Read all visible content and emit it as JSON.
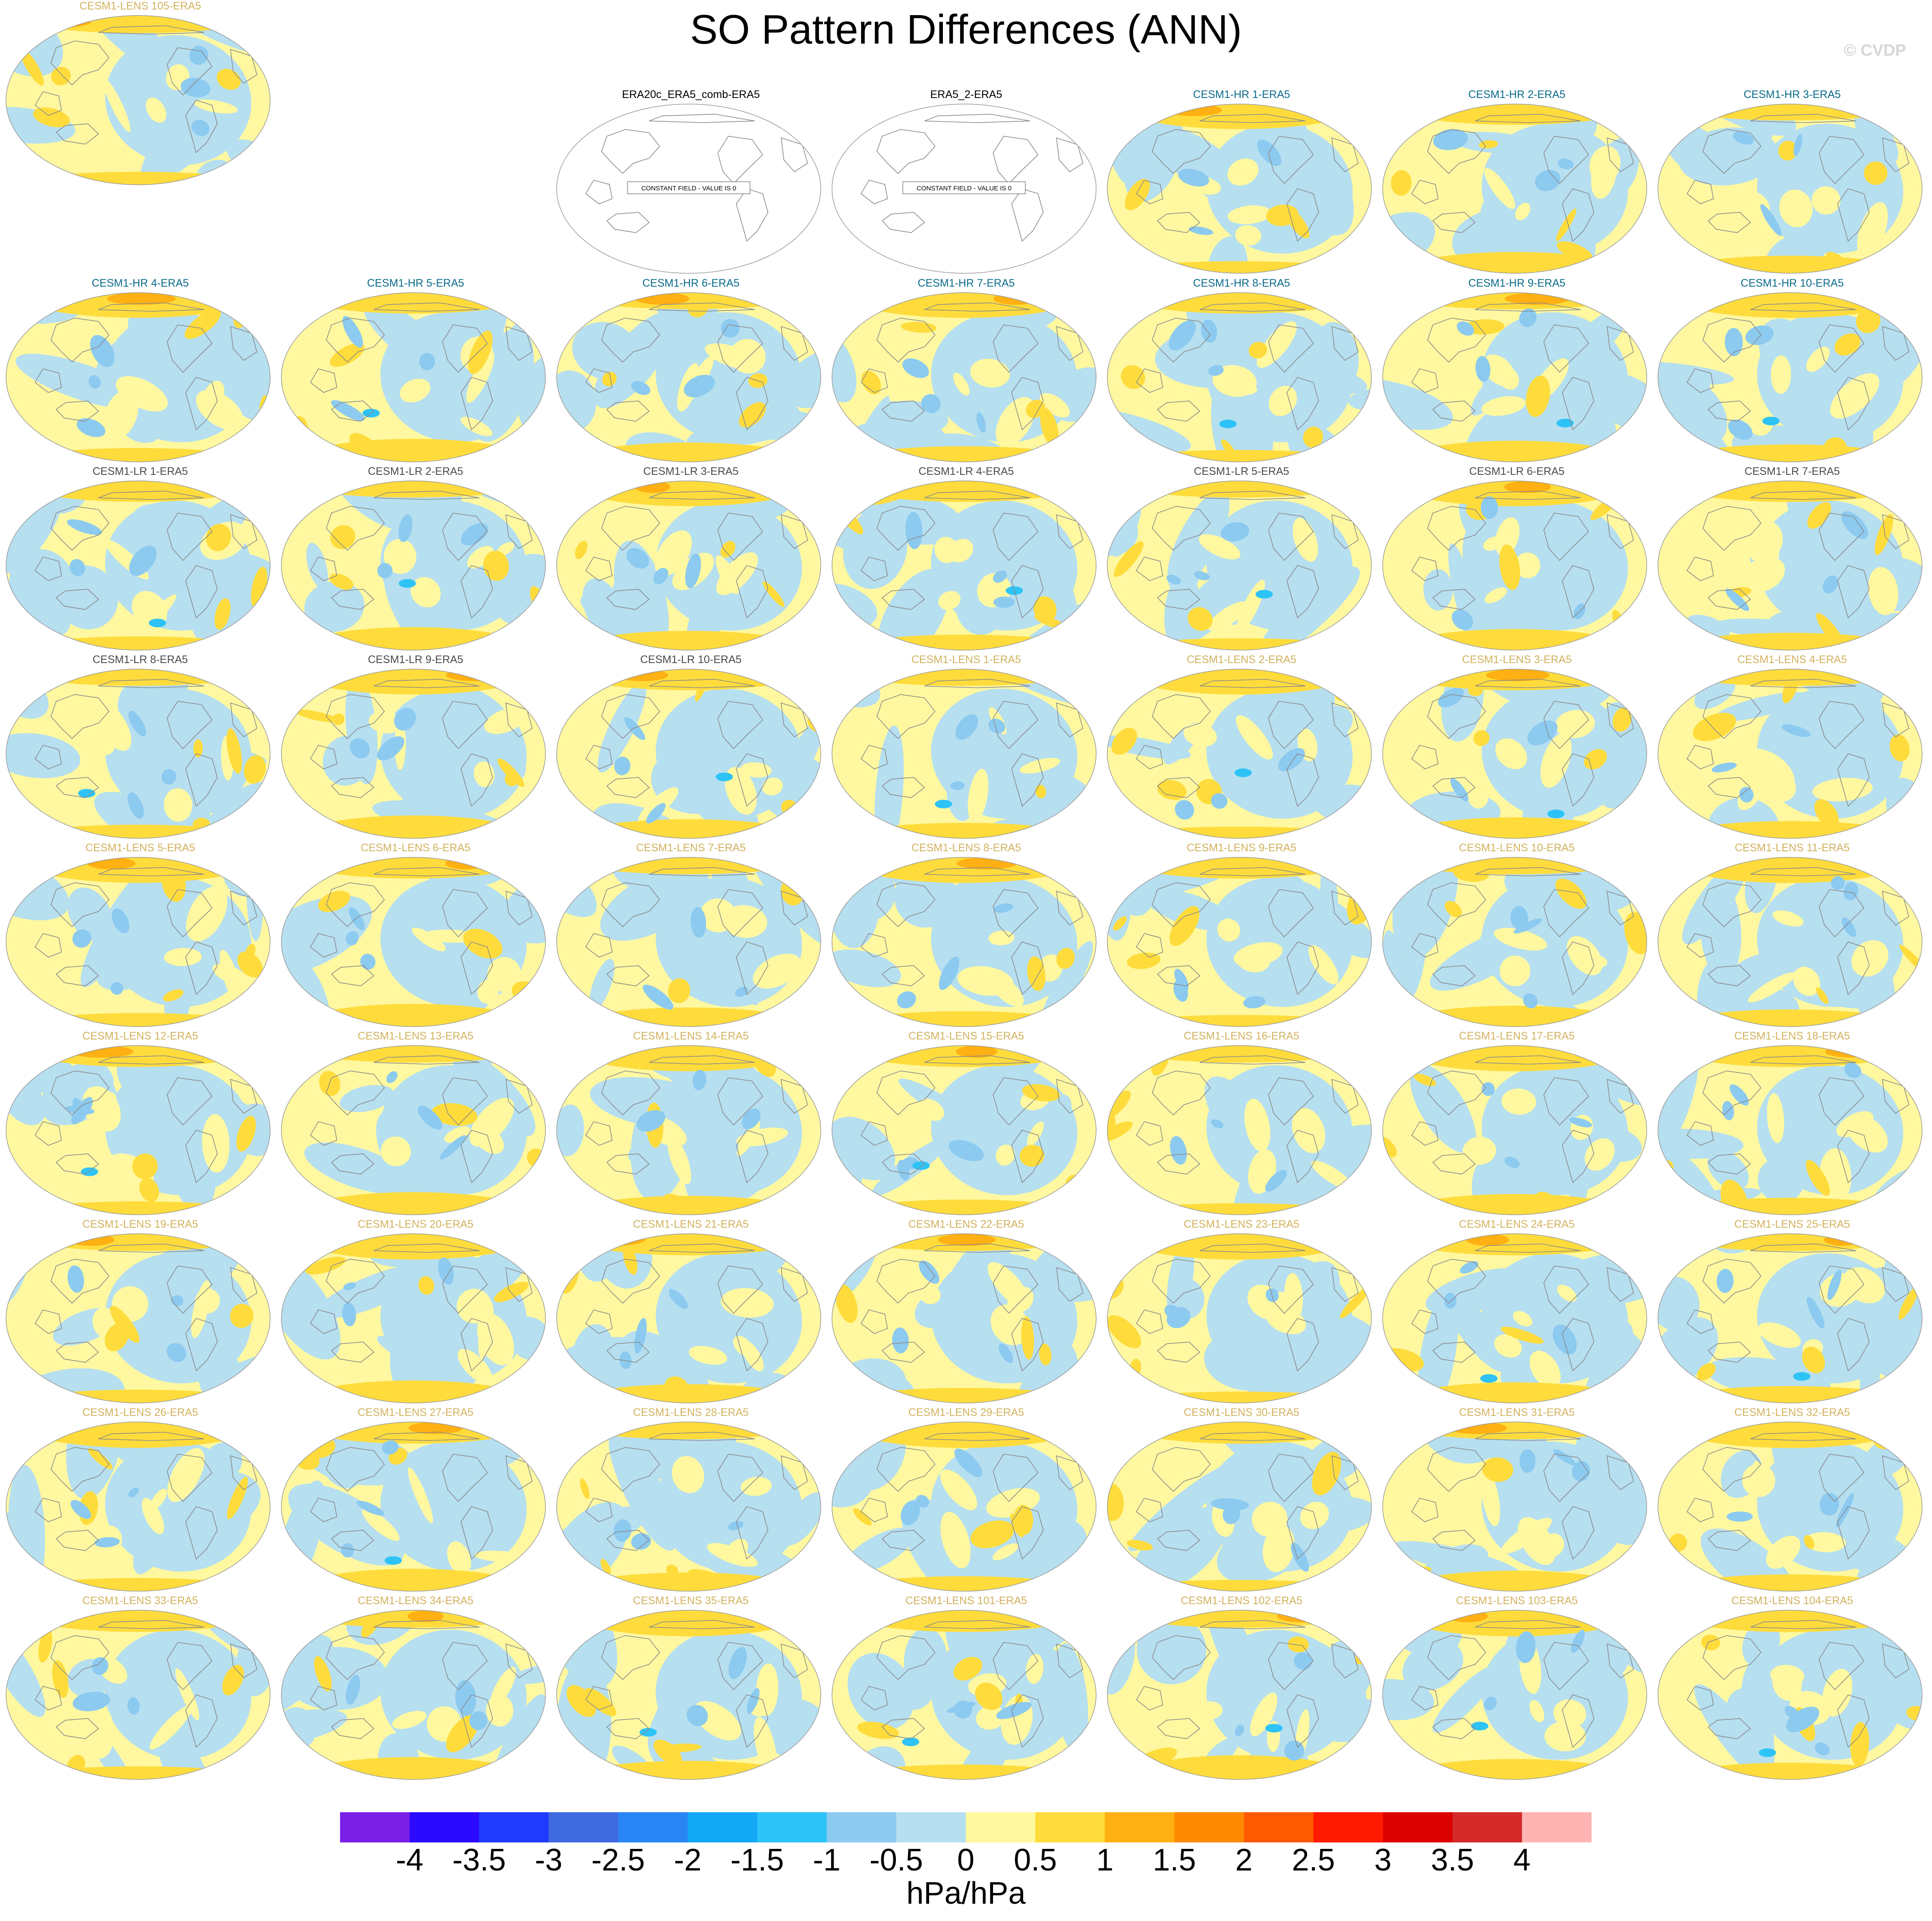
{
  "title": "SO Pattern Differences (ANN)",
  "copyright": "© CVDP",
  "panels": [
    {
      "label": "ERA20c_ERA5_comb-ERA5",
      "group": "obs",
      "constant_label": "CONSTANT FIELD - VALUE IS 0"
    },
    {
      "label": "ERA5_2-ERA5",
      "group": "obs",
      "constant_label": "CONSTANT FIELD - VALUE IS 0"
    },
    {
      "label": "CESM1-HR 1-ERA5",
      "group": "hr"
    },
    {
      "label": "CESM1-HR 2-ERA5",
      "group": "hr"
    },
    {
      "label": "CESM1-HR 3-ERA5",
      "group": "hr"
    },
    {
      "label": "CESM1-HR 4-ERA5",
      "group": "hr"
    },
    {
      "label": "CESM1-HR 5-ERA5",
      "group": "hr"
    },
    {
      "label": "CESM1-HR 6-ERA5",
      "group": "hr"
    },
    {
      "label": "CESM1-HR 7-ERA5",
      "group": "hr"
    },
    {
      "label": "CESM1-HR 8-ERA5",
      "group": "hr"
    },
    {
      "label": "CESM1-HR 9-ERA5",
      "group": "hr"
    },
    {
      "label": "CESM1-HR 10-ERA5",
      "group": "hr"
    },
    {
      "label": "CESM1-LR 1-ERA5",
      "group": "lr"
    },
    {
      "label": "CESM1-LR 2-ERA5",
      "group": "lr"
    },
    {
      "label": "CESM1-LR 3-ERA5",
      "group": "lr"
    },
    {
      "label": "CESM1-LR 4-ERA5",
      "group": "lr"
    },
    {
      "label": "CESM1-LR 5-ERA5",
      "group": "lr"
    },
    {
      "label": "CESM1-LR 6-ERA5",
      "group": "lr"
    },
    {
      "label": "CESM1-LR 7-ERA5",
      "group": "lr"
    },
    {
      "label": "CESM1-LR 8-ERA5",
      "group": "lr"
    },
    {
      "label": "CESM1-LR 9-ERA5",
      "group": "lr"
    },
    {
      "label": "CESM1-LR 10-ERA5",
      "group": "lr"
    },
    {
      "label": "CESM1-LENS 1-ERA5",
      "group": "lens"
    },
    {
      "label": "CESM1-LENS 2-ERA5",
      "group": "lens"
    },
    {
      "label": "CESM1-LENS 3-ERA5",
      "group": "lens"
    },
    {
      "label": "CESM1-LENS 4-ERA5",
      "group": "lens"
    },
    {
      "label": "CESM1-LENS 5-ERA5",
      "group": "lens"
    },
    {
      "label": "CESM1-LENS 6-ERA5",
      "group": "lens"
    },
    {
      "label": "CESM1-LENS 7-ERA5",
      "group": "lens"
    },
    {
      "label": "CESM1-LENS 8-ERA5",
      "group": "lens"
    },
    {
      "label": "CESM1-LENS 9-ERA5",
      "group": "lens"
    },
    {
      "label": "CESM1-LENS 10-ERA5",
      "group": "lens"
    },
    {
      "label": "CESM1-LENS 11-ERA5",
      "group": "lens"
    },
    {
      "label": "CESM1-LENS 12-ERA5",
      "group": "lens"
    },
    {
      "label": "CESM1-LENS 13-ERA5",
      "group": "lens"
    },
    {
      "label": "CESM1-LENS 14-ERA5",
      "group": "lens"
    },
    {
      "label": "CESM1-LENS 15-ERA5",
      "group": "lens"
    },
    {
      "label": "CESM1-LENS 16-ERA5",
      "group": "lens"
    },
    {
      "label": "CESM1-LENS 17-ERA5",
      "group": "lens"
    },
    {
      "label": "CESM1-LENS 18-ERA5",
      "group": "lens"
    },
    {
      "label": "CESM1-LENS 19-ERA5",
      "group": "lens"
    },
    {
      "label": "CESM1-LENS 20-ERA5",
      "group": "lens"
    },
    {
      "label": "CESM1-LENS 21-ERA5",
      "group": "lens"
    },
    {
      "label": "CESM1-LENS 22-ERA5",
      "group": "lens"
    },
    {
      "label": "CESM1-LENS 23-ERA5",
      "group": "lens"
    },
    {
      "label": "CESM1-LENS 24-ERA5",
      "group": "lens"
    },
    {
      "label": "CESM1-LENS 25-ERA5",
      "group": "lens"
    },
    {
      "label": "CESM1-LENS 26-ERA5",
      "group": "lens"
    },
    {
      "label": "CESM1-LENS 27-ERA5",
      "group": "lens"
    },
    {
      "label": "CESM1-LENS 28-ERA5",
      "group": "lens"
    },
    {
      "label": "CESM1-LENS 29-ERA5",
      "group": "lens"
    },
    {
      "label": "CESM1-LENS 30-ERA5",
      "group": "lens"
    },
    {
      "label": "CESM1-LENS 31-ERA5",
      "group": "lens"
    },
    {
      "label": "CESM1-LENS 32-ERA5",
      "group": "lens"
    },
    {
      "label": "CESM1-LENS 33-ERA5",
      "group": "lens"
    },
    {
      "label": "CESM1-LENS 34-ERA5",
      "group": "lens"
    },
    {
      "label": "CESM1-LENS 35-ERA5",
      "group": "lens"
    },
    {
      "label": "CESM1-LENS 101-ERA5",
      "group": "lens"
    },
    {
      "label": "CESM1-LENS 102-ERA5",
      "group": "lens"
    },
    {
      "label": "CESM1-LENS 103-ERA5",
      "group": "lens"
    },
    {
      "label": "CESM1-LENS 104-ERA5",
      "group": "lens"
    },
    {
      "label": "CESM1-LENS 105-ERA5",
      "group": "lens"
    }
  ],
  "label_colors": {
    "obs": "#000000",
    "hr": "#0a6b8a",
    "lr": "#4a4a4a",
    "lens": "#d2b25e"
  },
  "colorbar": {
    "colors": [
      "#7b1fe6",
      "#2c0aff",
      "#1f3bff",
      "#3f6ae0",
      "#2a86f4",
      "#12a8f6",
      "#2ec3f6",
      "#8ccaf0",
      "#b6dff0",
      "#fff8a0",
      "#ffdc3c",
      "#ffb012",
      "#ff8a00",
      "#ff5a00",
      "#ff1a00",
      "#dc0000",
      "#d42a2a",
      "#ffb4b4"
    ],
    "ticks": [
      "-4",
      "-3.5",
      "-3",
      "-2.5",
      "-2",
      "-1.5",
      "-1",
      "-0.5",
      "0",
      "0.5",
      "1",
      "1.5",
      "2",
      "2.5",
      "3",
      "3.5",
      "4"
    ],
    "units": "hPa/hPa"
  }
}
